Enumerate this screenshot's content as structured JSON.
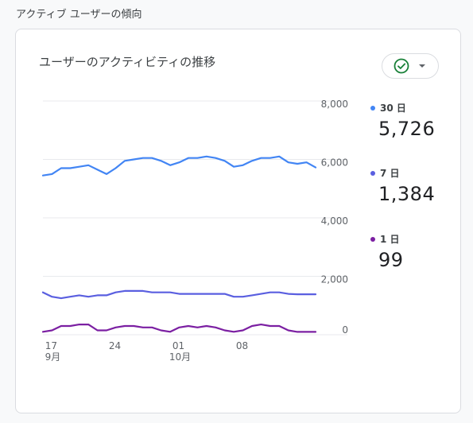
{
  "section_title": "アクティブ ユーザーの傾向",
  "card": {
    "title": "ユーザーのアクティビティの推移",
    "check_dropdown_icons": [
      "check-circle-icon",
      "caret-down-icon"
    ]
  },
  "legend": [
    {
      "label": "30 日",
      "value": "5,726",
      "color": "#4285f4"
    },
    {
      "label": "7 日",
      "value": "1,384",
      "color": "#5a5fe0"
    },
    {
      "label": "1 日",
      "value": "99",
      "color": "#7b1fa2"
    }
  ],
  "colors": {
    "check": "#188038",
    "grid": "#e8eaed",
    "axis_text": "#5f6368"
  },
  "chart_data": {
    "type": "line",
    "x": [
      "9/16",
      "9/17",
      "9/18",
      "9/19",
      "9/20",
      "9/21",
      "9/22",
      "9/23",
      "9/24",
      "9/25",
      "9/26",
      "9/27",
      "9/28",
      "9/29",
      "9/30",
      "10/01",
      "10/02",
      "10/03",
      "10/04",
      "10/05",
      "10/06",
      "10/07",
      "10/08",
      "10/09",
      "10/10",
      "10/11",
      "10/12",
      "10/13",
      "10/14",
      "10/15",
      "10/16"
    ],
    "x_tick_labels": [
      {
        "day": "17",
        "month": "9月"
      },
      {
        "day": "24",
        "month": ""
      },
      {
        "day": "01",
        "month": "10月"
      },
      {
        "day": "08",
        "month": ""
      }
    ],
    "y_ticks": [
      "8,000",
      "6,000",
      "4,000",
      "2,000",
      "0"
    ],
    "ylim": [
      0,
      8000
    ],
    "grid": true,
    "legend_position": "right",
    "series": [
      {
        "name": "30 日",
        "color": "#4285f4",
        "values": [
          5450,
          5500,
          5700,
          5700,
          5750,
          5800,
          5650,
          5500,
          5700,
          5950,
          6000,
          6050,
          6050,
          5950,
          5800,
          5900,
          6050,
          6050,
          6100,
          6050,
          5950,
          5750,
          5800,
          5950,
          6050,
          6050,
          6100,
          5900,
          5850,
          5900,
          5726
        ]
      },
      {
        "name": "7 日",
        "color": "#5a5fe0",
        "values": [
          1450,
          1300,
          1250,
          1300,
          1350,
          1300,
          1350,
          1350,
          1450,
          1500,
          1500,
          1500,
          1450,
          1450,
          1450,
          1400,
          1400,
          1400,
          1400,
          1400,
          1400,
          1300,
          1300,
          1350,
          1400,
          1450,
          1450,
          1400,
          1384,
          1384,
          1384
        ]
      },
      {
        "name": "1 日",
        "color": "#7b1fa2",
        "values": [
          100,
          150,
          300,
          300,
          350,
          350,
          150,
          150,
          250,
          300,
          300,
          250,
          250,
          150,
          100,
          250,
          300,
          250,
          300,
          250,
          150,
          100,
          150,
          300,
          350,
          300,
          300,
          150,
          99,
          99,
          99
        ]
      }
    ]
  }
}
